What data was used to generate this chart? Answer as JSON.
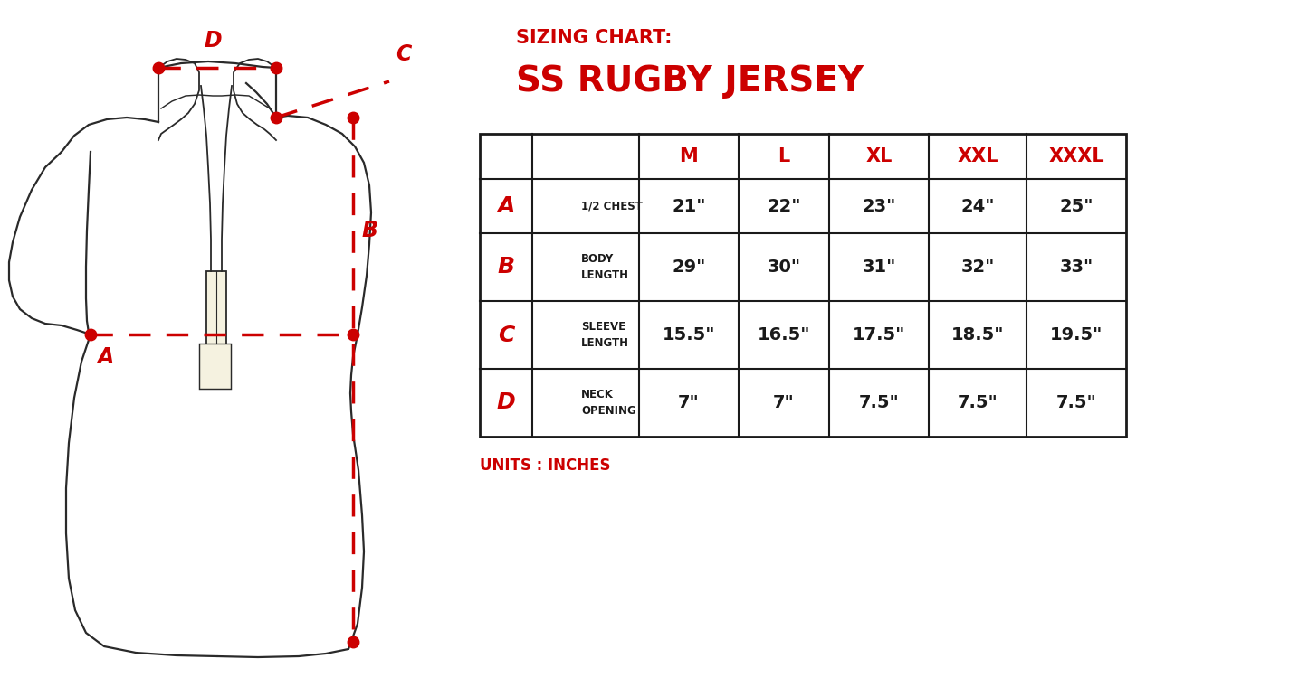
{
  "title_line1": "SIZING CHART:",
  "title_line2": "SS RUGBY JERSEY",
  "units_label": "UNITS : INCHES",
  "red_color": "#CC0000",
  "dark_color": "#1a1a1a",
  "jersey_color": "#2a2a2a",
  "collar_fill": "#f0ede0",
  "table_header": [
    "",
    "",
    "M",
    "L",
    "XL",
    "XXL",
    "XXXL"
  ],
  "table_rows": [
    [
      "A",
      "1/2 CHEST",
      "21\"",
      "22\"",
      "23\"",
      "24\"",
      "25\""
    ],
    [
      "B",
      "BODY\nLENGTH",
      "29\"",
      "30\"",
      "31\"",
      "32\"",
      "33\""
    ],
    [
      "C",
      "SLEEVE\nLENGTH",
      "15.5\"",
      "16.5\"",
      "17.5\"",
      "18.5\"",
      "19.5\""
    ],
    [
      "D",
      "NECK\nOPENING",
      "7\"",
      "7\"",
      "7.5\"",
      "7.5\"",
      "7.5\""
    ]
  ],
  "background_color": "#ffffff"
}
